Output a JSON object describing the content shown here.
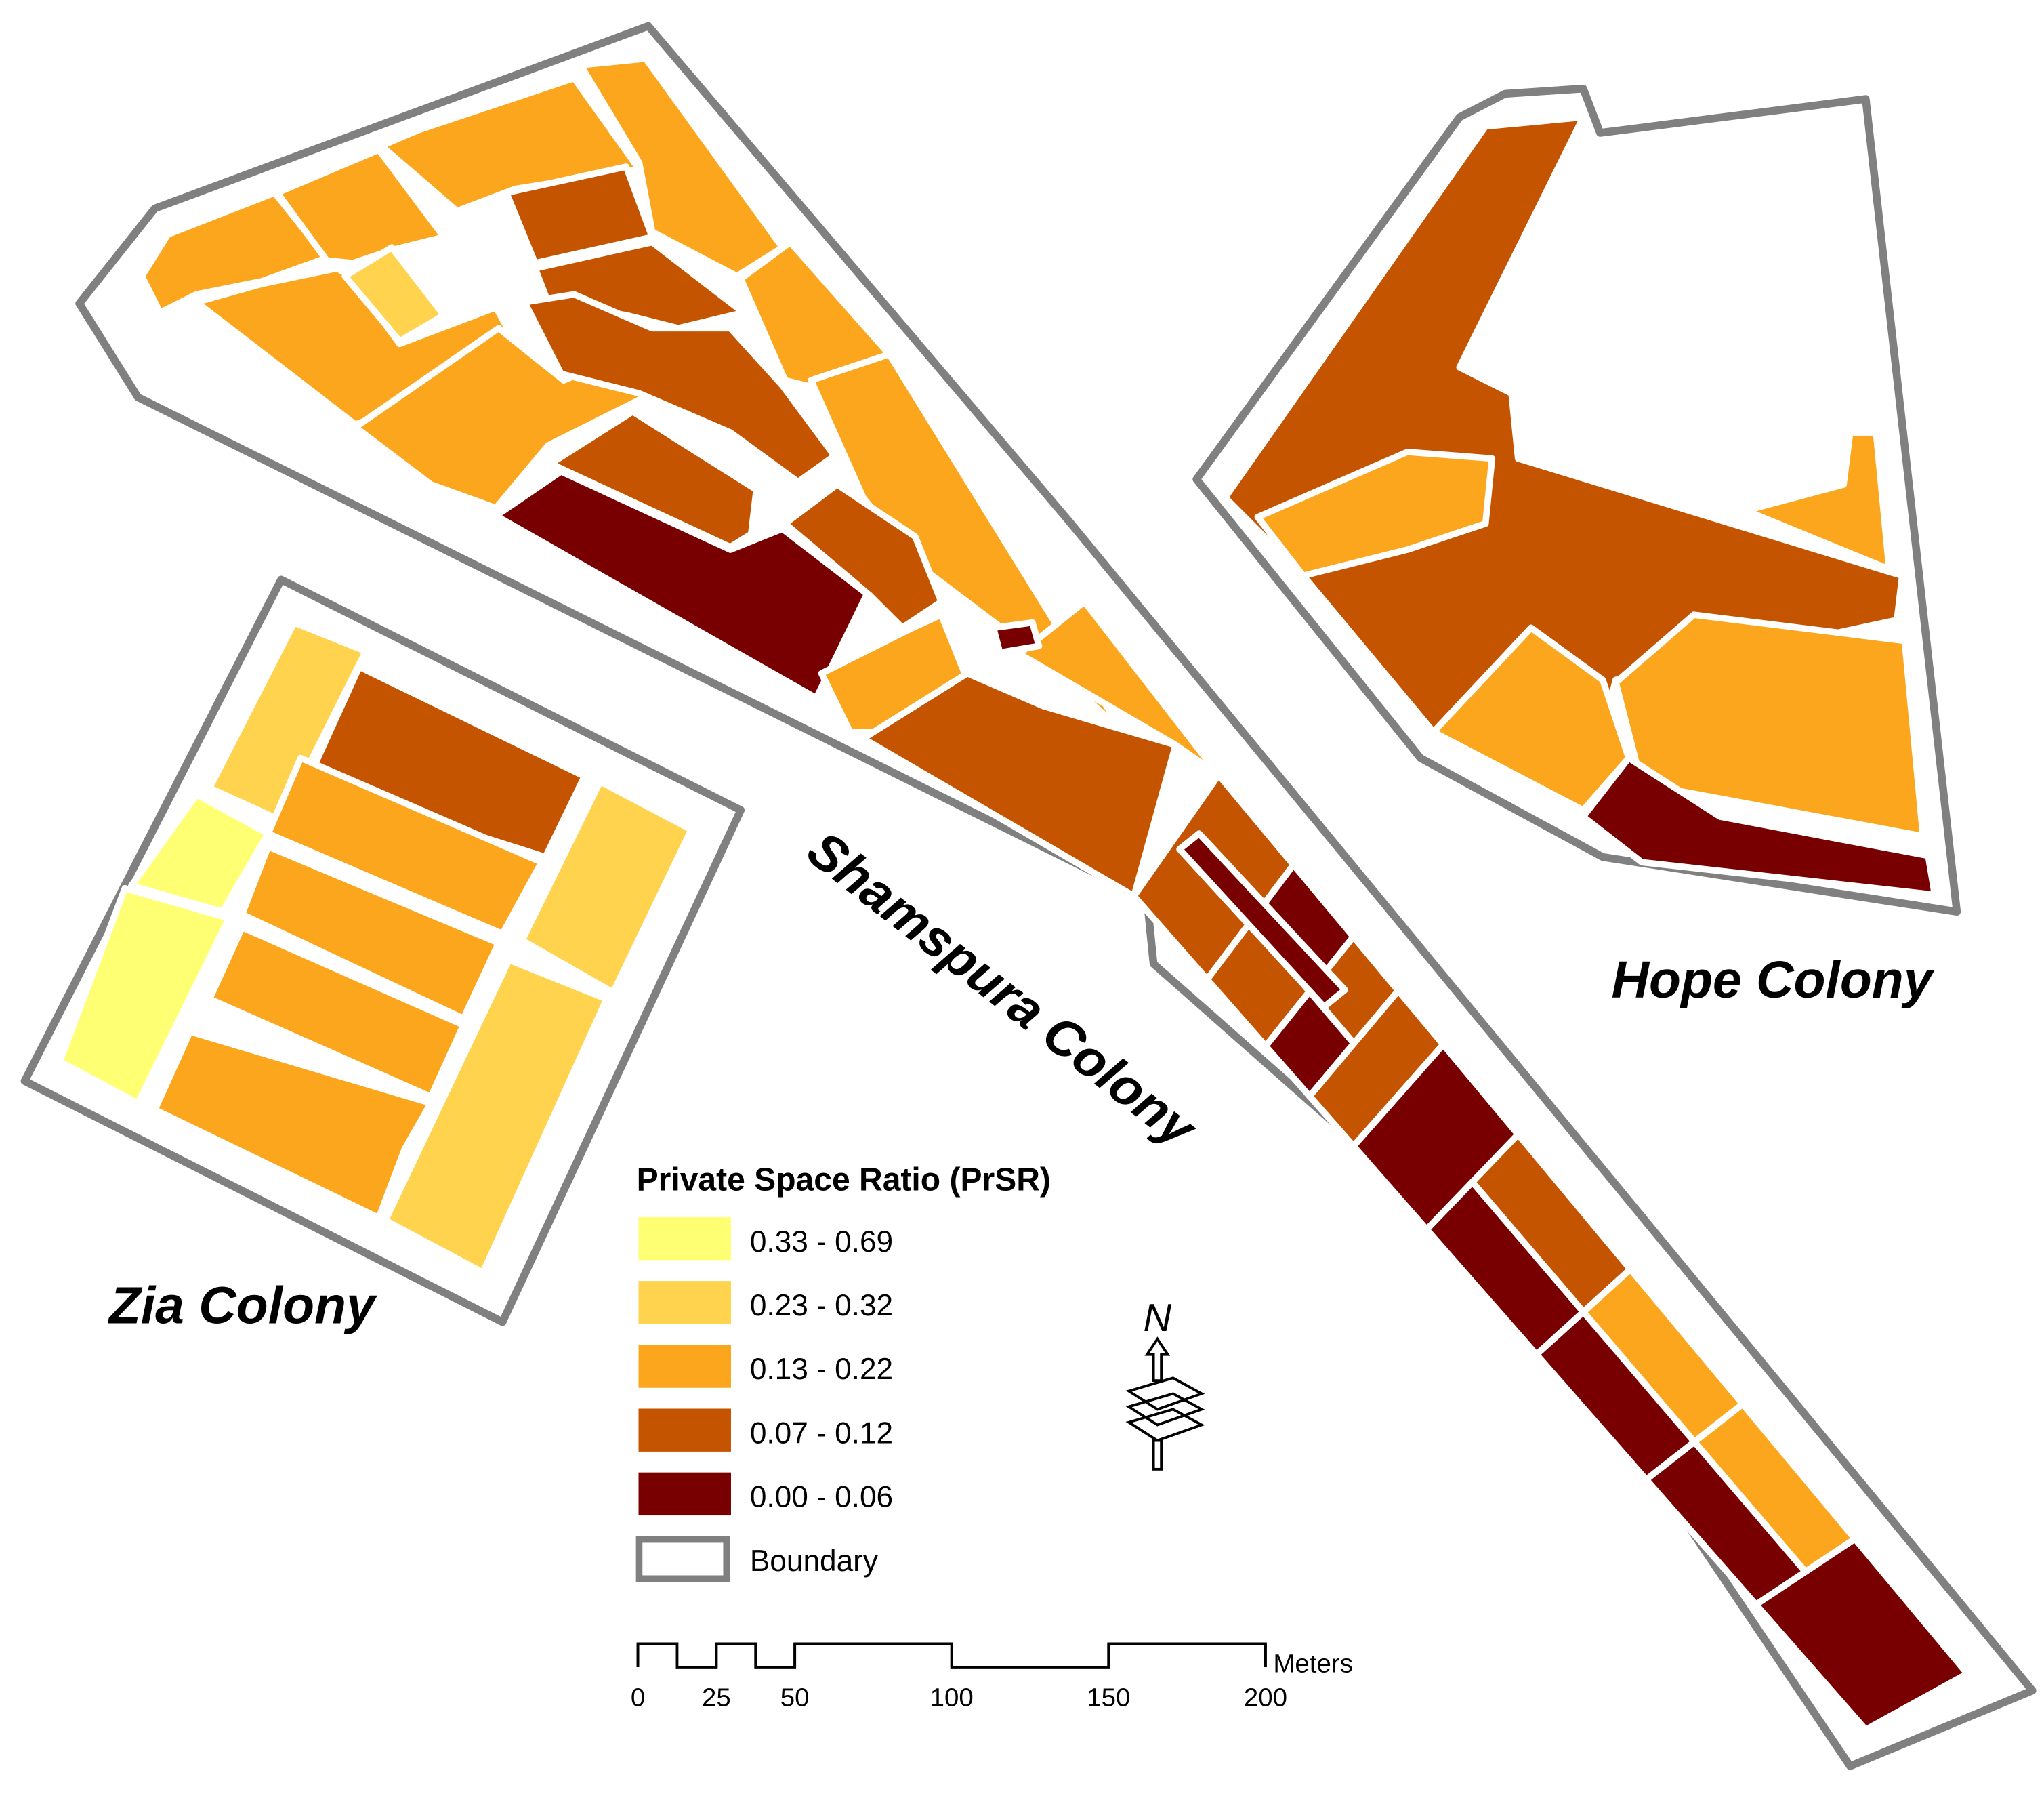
{
  "labels": {
    "shamspura": "Shamspura Colony",
    "hope": "Hope Colony",
    "zia": "Zia Colony"
  },
  "legend": {
    "title": "Private Space Ratio (PrSR)",
    "items": [
      {
        "label": "0.33 - 0.69",
        "color": "#ffff73"
      },
      {
        "label": "0.23 - 0.32",
        "color": "#ffd34d"
      },
      {
        "label": "0.13 - 0.22",
        "color": "#fba61c"
      },
      {
        "label": "0.07 - 0.12",
        "color": "#c45400"
      },
      {
        "label": "0.00 - 0.06",
        "color": "#780000"
      }
    ],
    "boundary": {
      "label": "Boundary",
      "color": "#808080"
    }
  },
  "north_arrow": "N",
  "scale_bar": {
    "unit": "Meters",
    "ticks": [
      0,
      25,
      50,
      100,
      150,
      200
    ]
  }
}
